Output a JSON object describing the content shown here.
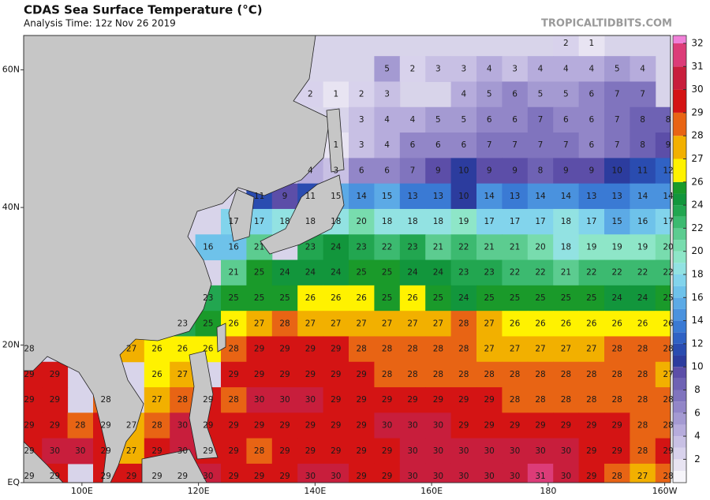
{
  "header": {
    "title": "CDAS Sea Surface Temperature (°C)",
    "subtitle": "Analysis Time: 12z Nov 26 2019",
    "watermark": "TROPICALTIDBITS.COM"
  },
  "map": {
    "xlim": [
      90,
      201
    ],
    "ylim": [
      0,
      65
    ],
    "lon_ticks": [
      {
        "value": 100,
        "label": "100E"
      },
      {
        "value": 120,
        "label": "120E"
      },
      {
        "value": 140,
        "label": "140E"
      },
      {
        "value": 160,
        "label": "160E"
      },
      180,
      {
        "value": 200,
        "label": "160W"
      }
    ],
    "lat_ticks": [
      {
        "value": 60,
        "label": "60N"
      },
      {
        "value": 40,
        "label": "40N"
      },
      {
        "value": 20,
        "label": "20N"
      },
      {
        "value": 0,
        "label": "EQ"
      }
    ],
    "rows": [
      [
        null,
        null,
        null,
        null,
        null,
        null,
        null,
        null,
        null,
        null,
        null,
        null,
        null,
        null,
        null,
        null,
        null,
        null,
        null,
        null,
        null,
        2,
        1,
        null,
        null,
        null
      ],
      [
        null,
        null,
        null,
        null,
        null,
        null,
        null,
        null,
        null,
        null,
        null,
        null,
        null,
        null,
        5,
        2,
        3,
        3,
        4,
        3,
        4,
        4,
        4,
        5,
        4,
        null
      ],
      [
        null,
        null,
        null,
        null,
        null,
        null,
        null,
        null,
        null,
        null,
        null,
        2,
        1,
        2,
        3,
        null,
        null,
        4,
        5,
        6,
        5,
        5,
        6,
        7,
        7,
        null
      ],
      [
        null,
        null,
        null,
        null,
        null,
        null,
        null,
        null,
        null,
        null,
        null,
        null,
        null,
        3,
        4,
        4,
        5,
        5,
        6,
        6,
        7,
        6,
        6,
        7,
        8,
        8
      ],
      [
        null,
        null,
        null,
        null,
        null,
        null,
        null,
        null,
        null,
        null,
        null,
        null,
        1,
        3,
        4,
        6,
        6,
        6,
        7,
        7,
        7,
        7,
        6,
        7,
        8,
        9
      ],
      [
        null,
        null,
        null,
        null,
        null,
        null,
        null,
        null,
        null,
        null,
        null,
        4,
        3,
        6,
        6,
        7,
        9,
        10,
        9,
        9,
        8,
        9,
        9,
        10,
        11,
        12
      ],
      [
        null,
        null,
        null,
        null,
        null,
        null,
        null,
        null,
        null,
        11,
        9,
        11,
        15,
        14,
        15,
        13,
        13,
        10,
        14,
        13,
        14,
        14,
        13,
        13,
        14,
        14
      ],
      [
        null,
        null,
        null,
        null,
        null,
        null,
        null,
        null,
        17,
        17,
        18,
        18,
        18,
        20,
        18,
        18,
        18,
        19,
        17,
        17,
        17,
        18,
        17,
        15,
        16,
        17
      ],
      [
        null,
        null,
        null,
        null,
        null,
        null,
        null,
        16,
        16,
        21,
        null,
        23,
        24,
        23,
        22,
        23,
        21,
        22,
        21,
        21,
        20,
        18,
        19,
        19,
        19,
        20
      ],
      [
        null,
        null,
        null,
        null,
        null,
        null,
        null,
        null,
        21,
        25,
        24,
        24,
        24,
        25,
        25,
        24,
        24,
        23,
        23,
        22,
        22,
        21,
        22,
        22,
        22,
        22
      ],
      [
        null,
        null,
        null,
        null,
        null,
        null,
        null,
        23,
        25,
        25,
        25,
        26,
        26,
        26,
        25,
        26,
        25,
        24,
        25,
        25,
        25,
        25,
        25,
        24,
        24,
        25
      ],
      [
        null,
        null,
        null,
        null,
        null,
        null,
        23,
        25,
        26,
        27,
        28,
        27,
        27,
        27,
        27,
        27,
        27,
        28,
        27,
        26,
        26,
        26,
        26,
        26,
        26,
        26
      ],
      [
        28,
        null,
        null,
        null,
        27,
        26,
        26,
        26,
        28,
        29,
        29,
        29,
        29,
        28,
        28,
        28,
        28,
        28,
        27,
        27,
        27,
        27,
        27,
        28,
        28,
        28
      ],
      [
        29,
        29,
        null,
        null,
        null,
        26,
        27,
        null,
        29,
        29,
        29,
        29,
        29,
        29,
        28,
        28,
        28,
        28,
        28,
        28,
        28,
        28,
        28,
        28,
        28,
        27
      ],
      [
        29,
        29,
        null,
        28,
        null,
        27,
        28,
        29,
        28,
        30,
        30,
        30,
        29,
        29,
        29,
        29,
        29,
        29,
        29,
        28,
        28,
        28,
        28,
        28,
        28,
        28
      ],
      [
        29,
        29,
        28,
        29,
        27,
        28,
        30,
        29,
        29,
        29,
        29,
        29,
        29,
        29,
        30,
        30,
        30,
        29,
        29,
        29,
        29,
        29,
        29,
        29,
        28,
        28
      ],
      [
        29,
        30,
        30,
        29,
        27,
        29,
        30,
        29,
        29,
        28,
        29,
        29,
        29,
        29,
        29,
        30,
        30,
        30,
        30,
        30,
        30,
        30,
        29,
        29,
        28,
        29
      ],
      [
        29,
        29,
        null,
        29,
        29,
        29,
        29,
        30,
        29,
        29,
        29,
        30,
        30,
        29,
        29,
        30,
        30,
        30,
        30,
        30,
        31,
        30,
        29,
        28,
        27,
        28
      ]
    ]
  },
  "colorbar": {
    "ticks": [
      2,
      4,
      6,
      8,
      10,
      12,
      14,
      16,
      18,
      20,
      22,
      24,
      26,
      27,
      28,
      29,
      30,
      31,
      32
    ],
    "colors": [
      "#f6f5fa",
      "#e8e4f2",
      "#d8d2ec",
      "#c8c0e4",
      "#b6acdc",
      "#a49ad2",
      "#9286c8",
      "#8074be",
      "#6e62b4",
      "#5c4ea8",
      "#2c3c9e",
      "#2a4cb0",
      "#3062c4",
      "#3a7ad4",
      "#4a92de",
      "#5caae6",
      "#6ec2ea",
      "#82d4ec",
      "#92e2e2",
      "#8ee6c8",
      "#78dcae",
      "#5ccc90",
      "#3cba70",
      "#22a650",
      "#12963c",
      "#1a9a2a",
      "#fff200",
      "#f2b000",
      "#e86414",
      "#d41414",
      "#c81e3c",
      "#dc3c78",
      "#f080d8"
    ]
  }
}
